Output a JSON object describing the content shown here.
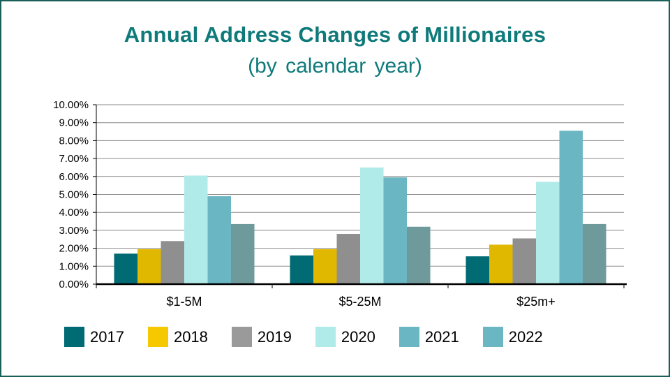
{
  "title": "Annual Address Changes of Millionaires",
  "subtitle": "(by calendar year)",
  "chart_data": {
    "type": "bar",
    "title": "Annual Address Changes of Millionaires",
    "subtitle": "(by calendar year)",
    "categories": [
      "$1-5M",
      "$5-25M",
      "$25m+"
    ],
    "ylim": [
      0,
      10
    ],
    "yticks": [
      "0.00%",
      "1.00%",
      "2.00%",
      "3.00%",
      "4.00%",
      "5.00%",
      "6.00%",
      "7.00%",
      "8.00%",
      "9.00%",
      "10.00%"
    ],
    "grid": true,
    "legend_position": "bottom",
    "series": [
      {
        "name": "2017",
        "color": "#006b73",
        "values": [
          1.7,
          1.6,
          1.55
        ]
      },
      {
        "name": "2018",
        "color": "#e0b800",
        "values": [
          1.95,
          1.95,
          2.2
        ]
      },
      {
        "name": "2019",
        "color": "#8f8f8f",
        "values": [
          2.4,
          2.8,
          2.55
        ]
      },
      {
        "name": "2020",
        "color": "#b0ebe9",
        "values": [
          6.05,
          6.5,
          5.7
        ]
      },
      {
        "name": "2021",
        "color": "#6ab6c3",
        "values": [
          4.9,
          5.95,
          8.55
        ]
      },
      {
        "name": "2022",
        "color": "#6f9a9c",
        "values": [
          3.35,
          3.2,
          3.35
        ]
      }
    ],
    "legend_colors": [
      "#006b73",
      "#f5c800",
      "#9a9a9a",
      "#b0ebe9",
      "#6ab6c3",
      "#6ab6c3"
    ]
  }
}
